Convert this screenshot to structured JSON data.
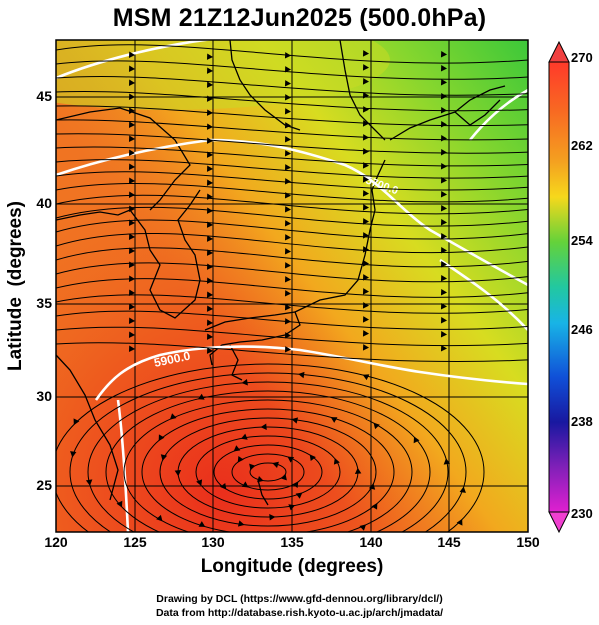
{
  "header": {
    "title": "MSM 21Z12Jun2025 (500.0hPa)"
  },
  "axes": {
    "xlabel": "Longitude (degrees)",
    "ylabel": "Latitude  (degrees)",
    "x_ticks": [
      "120",
      "125",
      "130",
      "135",
      "140",
      "145",
      "150"
    ],
    "y_ticks": [
      "45",
      "40",
      "35",
      "30",
      "25"
    ]
  },
  "colorbar": {
    "labels": [
      "270",
      "262",
      "254",
      "246",
      "238",
      "230"
    ]
  },
  "contours": {
    "label_5900": "5900.0",
    "label_5700": "5700.0"
  },
  "footer": {
    "line1": "Drawing by DCL (https://www.gfd-dennou.org/library/dcl/)",
    "line2": "Data from http://database.rish.kyoto-u.ac.jp/arch/jmadata/"
  },
  "chart_data": {
    "type": "heatmap",
    "title": "MSM 21Z12Jun2025 (500.0hPa)",
    "xlabel": "Longitude (degrees)",
    "ylabel": "Latitude  (degrees)",
    "xlim": [
      120,
      150
    ],
    "ylim": [
      22.4,
      47.6
    ],
    "colorbar_range": [
      230,
      270
    ],
    "colorbar_ticks": [
      270,
      262,
      254,
      246,
      238,
      230
    ],
    "grid": true,
    "colors": {
      "warm": "#e8321e",
      "mid": "#f0a020",
      "cool": "#7ed632",
      "land_outline": "#000000",
      "contour": "#ffffff"
    }
  }
}
